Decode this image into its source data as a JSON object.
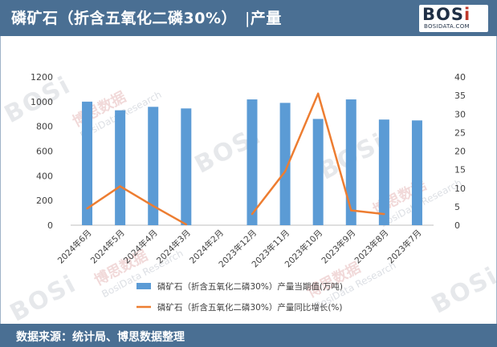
{
  "header": {
    "title": "磷矿石（折含五氧化二磷30%）",
    "separator": "|",
    "subtitle": "产量"
  },
  "logo": {
    "brand_main": "BOS",
    "brand_accent": "i",
    "site": "BOSIDATA.COM"
  },
  "footer": {
    "source": "数据来源：统计局、博思数据整理"
  },
  "watermark": {
    "brand": "BOSi",
    "cn": "博思数据",
    "en": "BosiData Research",
    "site": "BOSIDATA.COM"
  },
  "chart_data": {
    "type": "bar+line",
    "categories": [
      "2024年6月",
      "2024年5月",
      "2024年4月",
      "2024年3月",
      "2024年2月",
      "2023年12月",
      "2023年11月",
      "2023年10月",
      "2023年9月",
      "2023年8月",
      "2023年7月"
    ],
    "series": [
      {
        "name": "磷矿石（折含五氧化二磷30%）产量当期值(万吨)",
        "type": "bar",
        "axis": "left",
        "color": "#5b9bd5",
        "values": [
          1000,
          930,
          958,
          945,
          null,
          1018,
          990,
          860,
          1018,
          855,
          848
        ]
      },
      {
        "name": "磷矿石（折含五氧化二磷30%）产量同比增长(%)",
        "type": "line",
        "axis": "right",
        "color": "#ed7d31",
        "values": [
          4.5,
          10.5,
          5.2,
          0.2,
          null,
          3.0,
          14.5,
          35.5,
          4.0,
          3.0,
          null
        ]
      }
    ],
    "y_left": {
      "min": 0,
      "max": 1200,
      "ticks": [
        0,
        200,
        400,
        600,
        800,
        1000,
        1200
      ]
    },
    "y_right": {
      "min": 0,
      "max": 40,
      "ticks": [
        0,
        5,
        10,
        15,
        20,
        25,
        30,
        35,
        40
      ]
    },
    "grid": false,
    "legend_position": "bottom"
  }
}
